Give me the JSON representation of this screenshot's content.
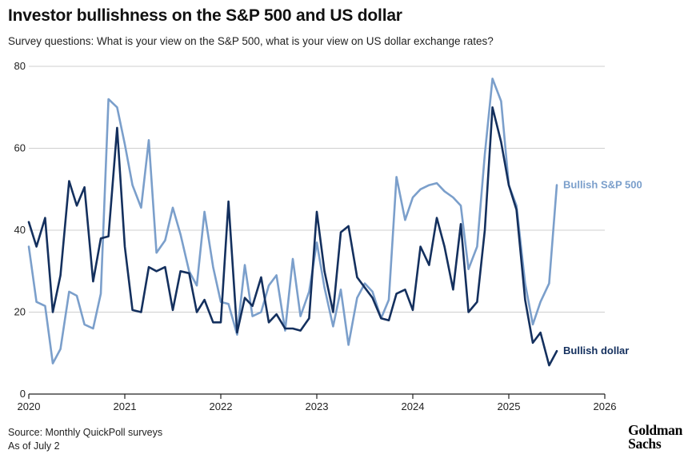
{
  "header": {
    "title": "Investor bullishness on the S&P 500 and US dollar",
    "subtitle": "Survey questions: What is your view on the S&P 500, what is your view on US dollar exchange rates?"
  },
  "footer": {
    "source": "Source: Monthly QuickPoll surveys",
    "date": "As of July 2"
  },
  "logo": {
    "line1": "Goldman",
    "line2": "Sachs"
  },
  "colors": {
    "dollar": "#14305e",
    "sp500": "#7b9fcb",
    "axis": "#222222"
  },
  "chart_data": {
    "type": "line",
    "title": "Investor bullishness on the S&P 500 and US dollar",
    "subtitle": "Survey questions: What is your view on the S&P 500, what is your view on US dollar exchange rates?",
    "xlabel": "",
    "ylabel": "",
    "xlim": [
      2020,
      2026
    ],
    "ylim": [
      0,
      80
    ],
    "x_ticks": [
      "2020",
      "2021",
      "2022",
      "2023",
      "2024",
      "2025",
      "2026"
    ],
    "y_ticks": [
      "0",
      "20",
      "40",
      "60",
      "80"
    ],
    "grid": "horizontal",
    "legend": "inline-labels-right",
    "series": [
      {
        "name": "Bullish S&P 500",
        "color": "#7b9fcb",
        "points": [
          [
            2020.0,
            36
          ],
          [
            2020.08,
            22.5
          ],
          [
            2020.17,
            21.5
          ],
          [
            2020.25,
            7.5
          ],
          [
            2020.33,
            11
          ],
          [
            2020.42,
            25
          ],
          [
            2020.5,
            24
          ],
          [
            2020.58,
            17
          ],
          [
            2020.67,
            16
          ],
          [
            2020.75,
            24.5
          ],
          [
            2020.83,
            72
          ],
          [
            2020.92,
            70
          ],
          [
            2021.0,
            61
          ],
          [
            2021.08,
            51
          ],
          [
            2021.17,
            45.5
          ],
          [
            2021.25,
            62
          ],
          [
            2021.33,
            34.5
          ],
          [
            2021.42,
            37.5
          ],
          [
            2021.5,
            45.5
          ],
          [
            2021.58,
            39
          ],
          [
            2021.67,
            30
          ],
          [
            2021.75,
            26.5
          ],
          [
            2021.83,
            44.5
          ],
          [
            2021.92,
            31
          ],
          [
            2022.0,
            22.5
          ],
          [
            2022.08,
            22
          ],
          [
            2022.17,
            14.5
          ],
          [
            2022.25,
            31.5
          ],
          [
            2022.33,
            19
          ],
          [
            2022.42,
            20
          ],
          [
            2022.5,
            26.5
          ],
          [
            2022.58,
            29
          ],
          [
            2022.67,
            15.5
          ],
          [
            2022.75,
            33
          ],
          [
            2022.83,
            19
          ],
          [
            2022.92,
            25
          ],
          [
            2023.0,
            37
          ],
          [
            2023.08,
            26
          ],
          [
            2023.17,
            16.5
          ],
          [
            2023.25,
            25.5
          ],
          [
            2023.33,
            12
          ],
          [
            2023.42,
            23.5
          ],
          [
            2023.5,
            27
          ],
          [
            2023.58,
            25
          ],
          [
            2023.67,
            18.5
          ],
          [
            2023.75,
            23
          ],
          [
            2023.83,
            53
          ],
          [
            2023.92,
            42.5
          ],
          [
            2024.0,
            48
          ],
          [
            2024.08,
            50
          ],
          [
            2024.17,
            51
          ],
          [
            2024.25,
            51.5
          ],
          [
            2024.33,
            49.5
          ],
          [
            2024.42,
            48
          ],
          [
            2024.5,
            46
          ],
          [
            2024.58,
            30.5
          ],
          [
            2024.67,
            36
          ],
          [
            2024.75,
            58.5
          ],
          [
            2024.83,
            77
          ],
          [
            2024.92,
            71.5
          ],
          [
            2025.0,
            51
          ],
          [
            2025.08,
            46
          ],
          [
            2025.17,
            27
          ],
          [
            2025.25,
            17
          ],
          [
            2025.33,
            22.5
          ],
          [
            2025.42,
            27
          ],
          [
            2025.5,
            51
          ]
        ]
      },
      {
        "name": "Bullish dollar",
        "color": "#14305e",
        "points": [
          [
            2020.0,
            42
          ],
          [
            2020.08,
            36
          ],
          [
            2020.17,
            43
          ],
          [
            2020.25,
            20
          ],
          [
            2020.33,
            29
          ],
          [
            2020.42,
            52
          ],
          [
            2020.5,
            46
          ],
          [
            2020.58,
            50.5
          ],
          [
            2020.67,
            27.5
          ],
          [
            2020.75,
            38
          ],
          [
            2020.83,
            38.5
          ],
          [
            2020.92,
            65
          ],
          [
            2021.0,
            36
          ],
          [
            2021.08,
            20.5
          ],
          [
            2021.17,
            20
          ],
          [
            2021.25,
            31
          ],
          [
            2021.33,
            30
          ],
          [
            2021.42,
            31
          ],
          [
            2021.5,
            20.5
          ],
          [
            2021.58,
            30
          ],
          [
            2021.67,
            29.5
          ],
          [
            2021.75,
            20
          ],
          [
            2021.83,
            23
          ],
          [
            2021.92,
            17.5
          ],
          [
            2022.0,
            17.5
          ],
          [
            2022.08,
            47
          ],
          [
            2022.17,
            15
          ],
          [
            2022.25,
            23.5
          ],
          [
            2022.33,
            21.5
          ],
          [
            2022.42,
            28.5
          ],
          [
            2022.5,
            17.5
          ],
          [
            2022.58,
            19.5
          ],
          [
            2022.67,
            16
          ],
          [
            2022.75,
            16
          ],
          [
            2022.83,
            15.5
          ],
          [
            2022.92,
            18.5
          ],
          [
            2023.0,
            44.5
          ],
          [
            2023.08,
            30
          ],
          [
            2023.17,
            20
          ],
          [
            2023.25,
            39.5
          ],
          [
            2023.33,
            41
          ],
          [
            2023.42,
            28.5
          ],
          [
            2023.5,
            26
          ],
          [
            2023.58,
            23.5
          ],
          [
            2023.67,
            18.5
          ],
          [
            2023.75,
            18
          ],
          [
            2023.83,
            24.5
          ],
          [
            2023.92,
            25.5
          ],
          [
            2024.0,
            20.5
          ],
          [
            2024.08,
            36
          ],
          [
            2024.17,
            31.5
          ],
          [
            2024.25,
            43
          ],
          [
            2024.33,
            36
          ],
          [
            2024.42,
            25.5
          ],
          [
            2024.5,
            41.5
          ],
          [
            2024.58,
            20
          ],
          [
            2024.67,
            22.5
          ],
          [
            2024.75,
            40
          ],
          [
            2024.83,
            70
          ],
          [
            2024.92,
            61.5
          ],
          [
            2025.0,
            51
          ],
          [
            2025.08,
            45
          ],
          [
            2025.17,
            23
          ],
          [
            2025.25,
            12.5
          ],
          [
            2025.33,
            15
          ],
          [
            2025.42,
            7
          ],
          [
            2025.5,
            10.5
          ]
        ]
      }
    ]
  }
}
